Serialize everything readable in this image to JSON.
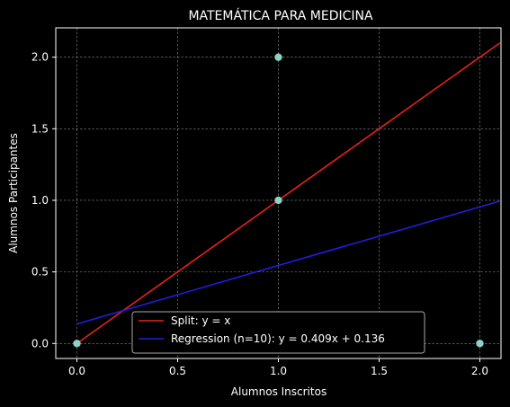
{
  "chart_data": {
    "type": "scatter",
    "title": "MATEMÁTICA PARA MEDICINA",
    "xlabel": "Alumnos Inscritos",
    "ylabel": "Alumnos Participantes",
    "xlim": [
      -0.105,
      2.105
    ],
    "ylim": [
      -0.105,
      2.205
    ],
    "xticks": [
      0.0,
      0.5,
      1.0,
      1.5,
      2.0
    ],
    "xtick_labels": [
      "0.0",
      "0.5",
      "1.0",
      "1.5",
      "2.0"
    ],
    "yticks": [
      0.0,
      0.5,
      1.0,
      1.5,
      2.0
    ],
    "ytick_labels": [
      "0.0",
      "0.5",
      "1.0",
      "1.5",
      "2.0"
    ],
    "grid": true,
    "background": "#000000",
    "points": {
      "color": "#8fd1c4",
      "x": [
        0,
        1,
        1,
        2
      ],
      "y": [
        0,
        2,
        1,
        0
      ]
    },
    "series": [
      {
        "name": "Split: y = x",
        "color": "#e8211c",
        "x": [
          0,
          2.1
        ],
        "y": [
          0,
          2.1
        ]
      },
      {
        "name": "Regression (n=10): y = 0.409x + 0.136",
        "color": "#1f1fe0",
        "x": [
          0,
          2.1
        ],
        "y": [
          0.136,
          0.9949
        ]
      }
    ],
    "legend_loc": "lower center"
  }
}
